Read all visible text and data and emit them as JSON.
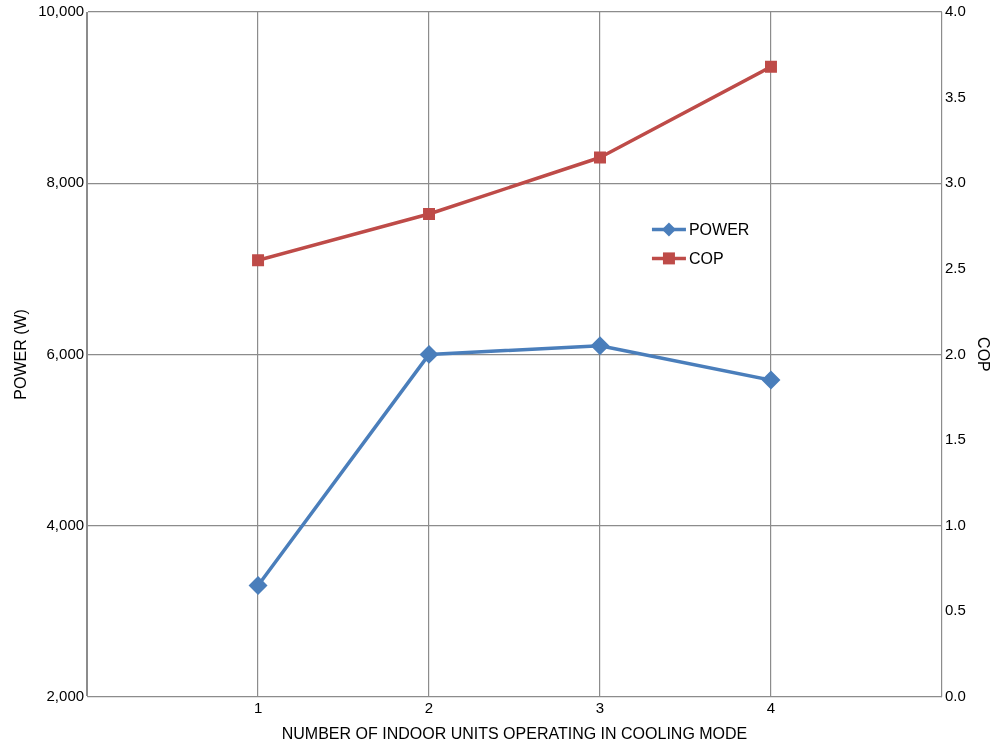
{
  "chart_data": {
    "type": "line",
    "xlabel": "NUMBER OF INDOOR UNITS OPERATING IN COOLING MODE",
    "ylabel": "POWER (W)",
    "y2label": "COP",
    "x": [
      1,
      2,
      3,
      4
    ],
    "xlim": [
      0,
      5
    ],
    "xticks": [
      {
        "value": 0,
        "label": null
      },
      1,
      2,
      3,
      4,
      {
        "value": 5,
        "label": null
      }
    ],
    "ylim": [
      2000,
      10000
    ],
    "yticks": [
      {
        "value": 2000,
        "label": "2,000"
      },
      {
        "value": 4000,
        "label": "4,000"
      },
      {
        "value": 6000,
        "label": "6,000"
      },
      {
        "value": 8000,
        "label": "8,000"
      },
      {
        "value": 10000,
        "label": "10,000"
      }
    ],
    "y2lim": [
      0,
      4
    ],
    "y2ticks": [
      {
        "value": 0,
        "label": "0.0"
      },
      {
        "value": 0.5,
        "label": "0.5"
      },
      {
        "value": 1,
        "label": "1.0"
      },
      {
        "value": 1.5,
        "label": "1.5"
      },
      {
        "value": 2,
        "label": "2.0"
      },
      {
        "value": 2.5,
        "label": "2.5"
      },
      {
        "value": 3,
        "label": "3.0"
      },
      {
        "value": 3.5,
        "label": "3.5"
      },
      {
        "value": 4,
        "label": "4.0"
      }
    ],
    "series": [
      {
        "name": "POWER",
        "color": "#4a7ebb",
        "marker": "diamond",
        "values": [
          3300,
          6000,
          6100,
          5700
        ]
      },
      {
        "name": "COP",
        "color": "#be4b48",
        "marker": "square",
        "axis": "y2",
        "values": [
          2.55,
          2.82,
          3.15,
          3.68
        ]
      }
    ],
    "grid": true,
    "legend": "right",
    "line_style": "solid"
  }
}
